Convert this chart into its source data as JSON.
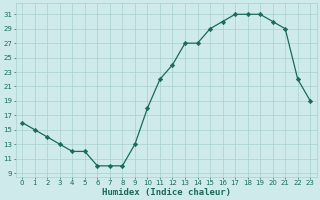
{
  "x_vals": [
    0,
    1,
    2,
    3,
    4,
    5,
    6,
    7,
    8,
    9,
    10,
    11,
    12,
    13,
    14,
    15,
    16,
    17,
    18,
    19,
    20,
    21,
    22,
    23
  ],
  "y_vals": [
    16,
    15,
    14,
    13,
    12,
    12,
    10,
    10,
    10,
    13,
    18,
    22,
    24,
    27,
    27,
    29,
    30,
    31,
    31,
    31,
    30,
    29,
    22,
    19
  ],
  "line_color": "#1a6b5a",
  "marker": "D",
  "marker_size": 2.2,
  "bg_color": "#ceeaea",
  "grid_color": "#aacfcf",
  "xlabel": "Humidex (Indice chaleur)",
  "xlim": [
    -0.5,
    23.5
  ],
  "ylim": [
    8.5,
    32.5
  ],
  "yticks": [
    9,
    11,
    13,
    15,
    17,
    19,
    21,
    23,
    25,
    27,
    29,
    31
  ],
  "xticks": [
    0,
    1,
    2,
    3,
    4,
    5,
    6,
    7,
    8,
    9,
    10,
    11,
    12,
    13,
    14,
    15,
    16,
    17,
    18,
    19,
    20,
    21,
    22,
    23
  ],
  "tick_fontsize": 5.0,
  "xlabel_fontsize": 6.5,
  "xlabel_fontweight": "bold",
  "linewidth": 0.9
}
